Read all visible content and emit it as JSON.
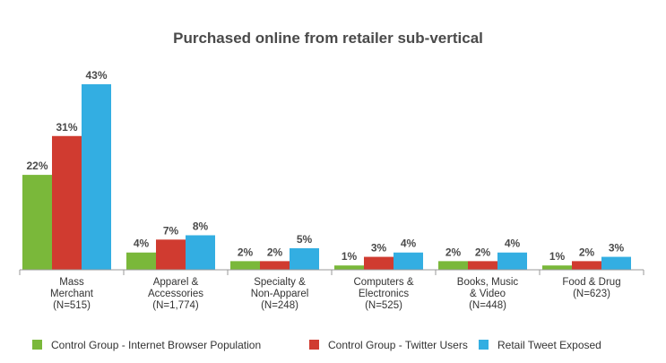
{
  "chart_data": {
    "type": "bar",
    "title": "Purchased online from retailer sub-vertical",
    "categories": [
      [
        "Mass",
        "Merchant",
        "(N=515)"
      ],
      [
        "Apparel &",
        "Accessories",
        "(N=1,774)"
      ],
      [
        "Specialty &",
        "Non-Apparel",
        "(N=248)"
      ],
      [
        "Computers &",
        "Electronics",
        "(N=525)"
      ],
      [
        "Books, Music",
        "& Video",
        "(N=448)"
      ],
      [
        "Food & Drug",
        "(N=623)"
      ]
    ],
    "series": [
      {
        "name": "Control Group - Internet Browser Population",
        "color": "#7ab83a",
        "values": [
          22,
          4,
          2,
          1,
          2,
          1
        ]
      },
      {
        "name": "Control Group - Twitter Users",
        "color": "#d03b30",
        "values": [
          31,
          7,
          2,
          3,
          2,
          2
        ]
      },
      {
        "name": "Retail Tweet Exposed",
        "color": "#33aee2",
        "values": [
          43,
          8,
          5,
          4,
          4,
          3
        ]
      }
    ],
    "value_suffix": "%",
    "ylim": [
      0,
      45
    ],
    "grid": false,
    "legend_position": "bottom"
  }
}
